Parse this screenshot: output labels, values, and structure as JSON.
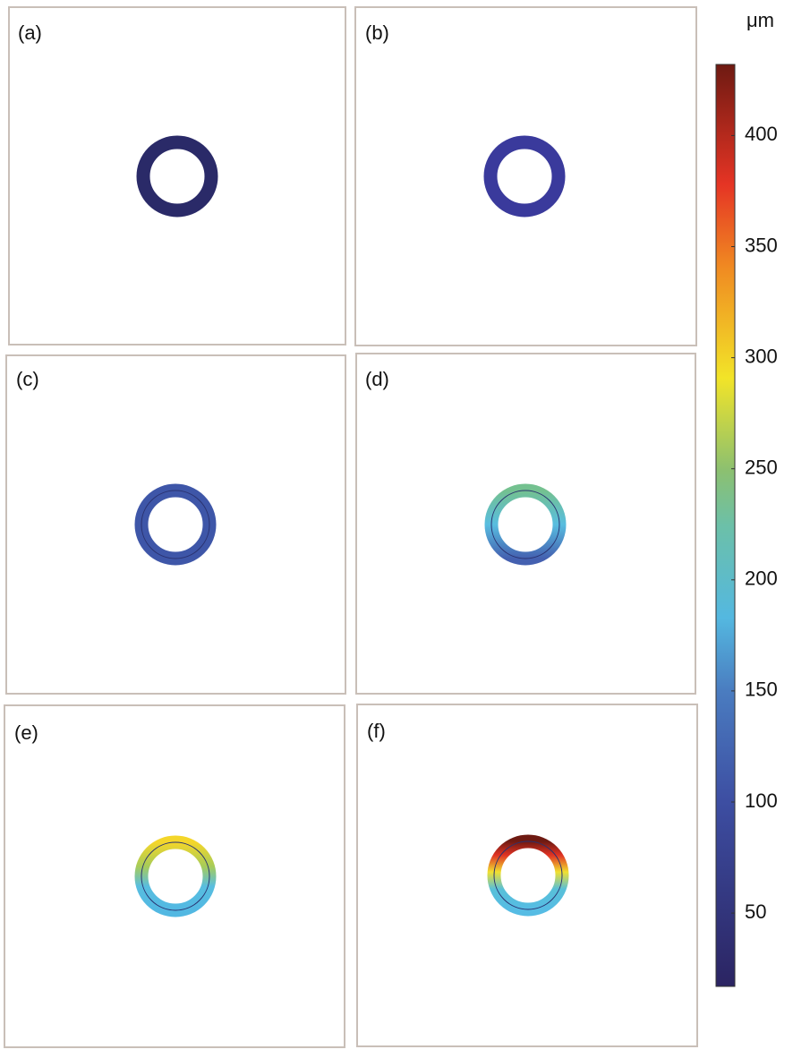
{
  "panels": [
    {
      "label": "(a)"
    },
    {
      "label": "(b)"
    },
    {
      "label": "(c)"
    },
    {
      "label": "(d)"
    },
    {
      "label": "(e)"
    },
    {
      "label": "(f)"
    }
  ],
  "colorbar": {
    "unit": "μm",
    "lim": [
      17,
      432
    ],
    "ticks": [
      50,
      100,
      150,
      200,
      250,
      300,
      350,
      400
    ]
  }
}
